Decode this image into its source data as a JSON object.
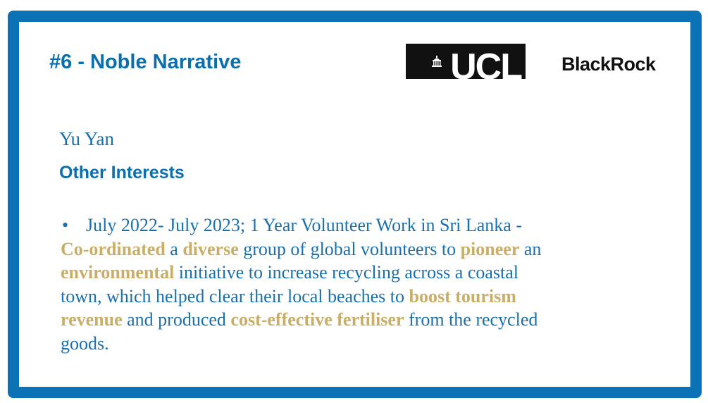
{
  "slide": {
    "title": "#6 - Noble Narrative",
    "logos": {
      "ucl": "UCL",
      "blackrock": "BlackRock"
    },
    "name": "Yu Yan",
    "heading": "Other Interests",
    "bullet_symbol": "•",
    "colors": {
      "frame": "#0a72b5",
      "text": "#1a6fad",
      "highlight": "#c8ae68"
    },
    "lines": [
      [
        {
          "t": "July 2022- July 2023; 1 Year Volunteer Work in Sri Lanka -",
          "h": false
        }
      ],
      [
        {
          "t": "Co-ordinated",
          "h": true
        },
        {
          "t": " a ",
          "h": false
        },
        {
          "t": "diverse",
          "h": true
        },
        {
          "t": " group of global volunteers to ",
          "h": false
        },
        {
          "t": "pioneer",
          "h": true
        },
        {
          "t": " an",
          "h": false
        }
      ],
      [
        {
          "t": "environmental",
          "h": true
        },
        {
          "t": " initiative to increase recycling across a coastal",
          "h": false
        }
      ],
      [
        {
          "t": "town, which helped clear their local beaches to ",
          "h": false
        },
        {
          "t": "boost tourism",
          "h": true
        }
      ],
      [
        {
          "t": "revenue",
          "h": true
        },
        {
          "t": " and produced ",
          "h": false
        },
        {
          "t": "cost-effective fertiliser",
          "h": true
        },
        {
          "t": " from the recycled",
          "h": false
        }
      ],
      [
        {
          "t": "goods.",
          "h": false
        }
      ]
    ]
  }
}
